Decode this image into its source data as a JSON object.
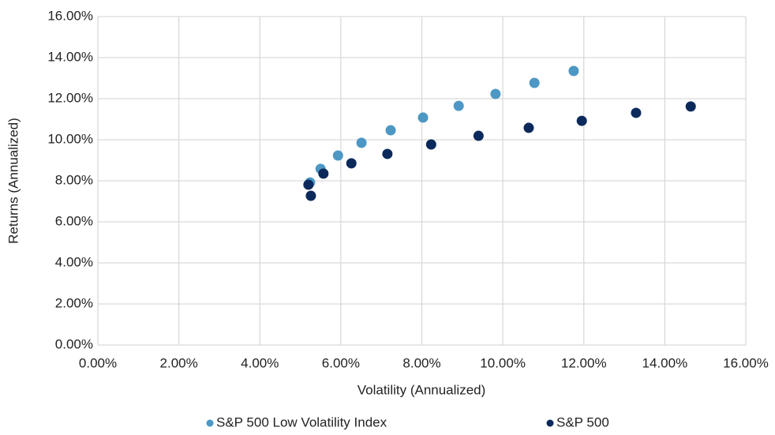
{
  "chart_data": {
    "type": "scatter",
    "x_label": "Volatility (Annualized)",
    "y_label": "Returns (Annualized)",
    "xlim": [
      0,
      16
    ],
    "ylim": [
      0,
      16
    ],
    "xticks": [
      {
        "value": 0,
        "label": "0.00%"
      },
      {
        "value": 2,
        "label": "2.00%"
      },
      {
        "value": 4,
        "label": "4.00%"
      },
      {
        "value": 6,
        "label": "6.00%"
      },
      {
        "value": 8,
        "label": "8.00%"
      },
      {
        "value": 10,
        "label": "10.00%"
      },
      {
        "value": 12,
        "label": "12.00%"
      },
      {
        "value": 14,
        "label": "14.00%"
      },
      {
        "value": 16,
        "label": "16.00%"
      }
    ],
    "yticks": [
      {
        "value": 0,
        "label": "0.00%"
      },
      {
        "value": 2,
        "label": "2.00%"
      },
      {
        "value": 4,
        "label": "4.00%"
      },
      {
        "value": 6,
        "label": "6.00%"
      },
      {
        "value": 8,
        "label": "8.00%"
      },
      {
        "value": 10,
        "label": "10.00%"
      },
      {
        "value": 12,
        "label": "12.00%"
      },
      {
        "value": 14,
        "label": "14.00%"
      },
      {
        "value": 16,
        "label": "16.00%"
      }
    ],
    "grid": true,
    "legend": "bottom",
    "series": [
      {
        "name": "S&P 500 Low Volatility Index",
        "color": "#4d97c4",
        "x": [
          5.24,
          5.5,
          5.93,
          6.51,
          7.23,
          8.03,
          8.91,
          9.82,
          10.78,
          11.75
        ],
        "values": [
          7.92,
          8.58,
          9.23,
          9.85,
          10.46,
          11.08,
          11.65,
          12.23,
          12.77,
          13.35
        ]
      },
      {
        "name": "S&P 500",
        "color": "#0b2a5b",
        "x": [
          5.2,
          5.26,
          5.57,
          6.26,
          7.15,
          8.23,
          9.4,
          10.64,
          11.95,
          13.29,
          14.64
        ],
        "values": [
          7.81,
          7.27,
          8.35,
          8.85,
          9.31,
          9.77,
          10.19,
          10.58,
          10.92,
          11.31,
          11.62
        ]
      }
    ]
  }
}
